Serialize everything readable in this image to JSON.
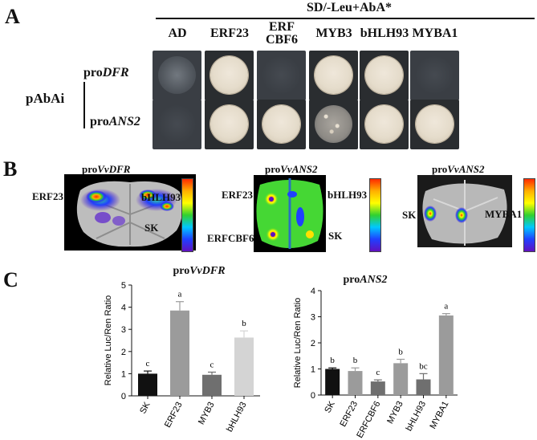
{
  "panelA": {
    "letter": "A",
    "medium": "SD/-Leu+AbA*",
    "columns": [
      "AD",
      "ERF23",
      "ERF\nCBF6",
      "MYB3",
      "bHLH93",
      "MYBA1"
    ],
    "bait_group": "pAbAi",
    "rows": [
      {
        "label_prefix": "pro",
        "label_italic": "DFR",
        "growth": [
          "faint",
          "strong",
          "none",
          "strong",
          "strong",
          "none"
        ]
      },
      {
        "label_prefix": "pro",
        "label_italic": "ANS2",
        "growth": [
          "none",
          "strong",
          "strong",
          "speck",
          "strong",
          "strong"
        ]
      }
    ]
  },
  "panelB": {
    "letter": "B",
    "images": [
      {
        "title_prefix": "pro",
        "title_italic": "VvDFR",
        "labels": [
          "ERF23",
          "bHLH93",
          "SK"
        ]
      },
      {
        "title_prefix": "pro",
        "title_italic": "VvANS2",
        "labels": [
          "ERF23",
          "bHLH93",
          "ERFCBF6",
          "SK"
        ]
      },
      {
        "title_prefix": "pro",
        "title_italic": "VvANS2",
        "labels": [
          "SK",
          "MYBA1"
        ]
      }
    ]
  },
  "panelC": {
    "letter": "C"
  },
  "chart_data": [
    {
      "type": "bar",
      "title_prefix": "pro",
      "title_italic": "VvDFR",
      "ylabel": "Relative Luc/Ren Ratio",
      "ylim": [
        0,
        5
      ],
      "yticks": [
        "0",
        "1",
        "2",
        "3",
        "4",
        "5"
      ],
      "categories": [
        "SK",
        "ERF23",
        "MYB3",
        "bHLH93"
      ],
      "values": [
        1.0,
        3.85,
        0.95,
        2.63
      ],
      "errors": [
        0.12,
        0.4,
        0.12,
        0.3
      ],
      "significance": [
        "c",
        "a",
        "c",
        "b"
      ],
      "colors": [
        "#111111",
        "#9b9b9b",
        "#6f6f6f",
        "#d4d4d4"
      ]
    },
    {
      "type": "bar",
      "title_prefix": "pro",
      "title_italic": "ANS2",
      "ylabel": "Relative Luc/Ren Ratio",
      "ylim": [
        0,
        4
      ],
      "yticks": [
        "0",
        "1",
        "2",
        "3",
        "4"
      ],
      "categories": [
        "SK",
        "ERF23",
        "ERFCBF6",
        "MYB3",
        "bHLH93",
        "MYBA1"
      ],
      "values": [
        1.0,
        0.92,
        0.52,
        1.22,
        0.6,
        3.05
      ],
      "errors": [
        0.04,
        0.12,
        0.06,
        0.15,
        0.22,
        0.07
      ],
      "significance": [
        "b",
        "b",
        "c",
        "b",
        "bc",
        "a"
      ],
      "colors": [
        "#111111",
        "#9b9b9b",
        "#6f6f6f",
        "#9b9b9b",
        "#6f6f6f",
        "#9b9b9b"
      ]
    }
  ]
}
